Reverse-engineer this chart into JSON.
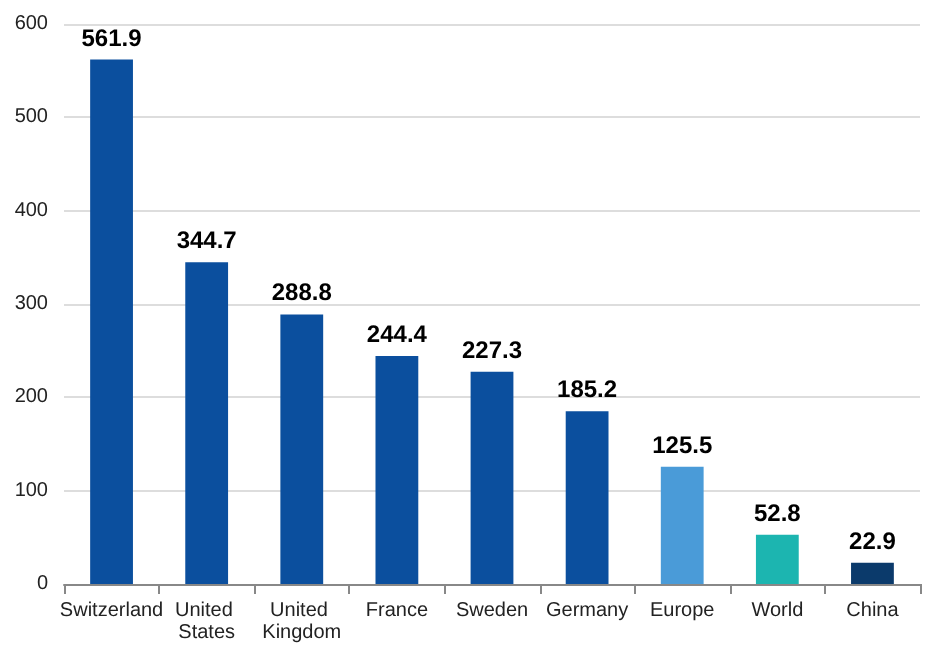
{
  "chart_data": {
    "type": "bar",
    "categories": [
      "Switzerland",
      "United States",
      "United Kingdom",
      "France",
      "Sweden",
      "Germany",
      "Europe",
      "World",
      "China"
    ],
    "values": [
      561.9,
      344.7,
      288.8,
      244.4,
      227.3,
      185.2,
      125.5,
      52.8,
      22.9
    ],
    "colors": [
      "#0b4f9e",
      "#0b4f9e",
      "#0b4f9e",
      "#0b4f9e",
      "#0b4f9e",
      "#0b4f9e",
      "#4a9bd8",
      "#1cb5b0",
      "#0b3a6b"
    ],
    "ylim": [
      0,
      600
    ],
    "yticks": [
      0,
      100,
      200,
      300,
      400,
      500,
      600
    ],
    "grid": "y",
    "data_labels": true
  }
}
